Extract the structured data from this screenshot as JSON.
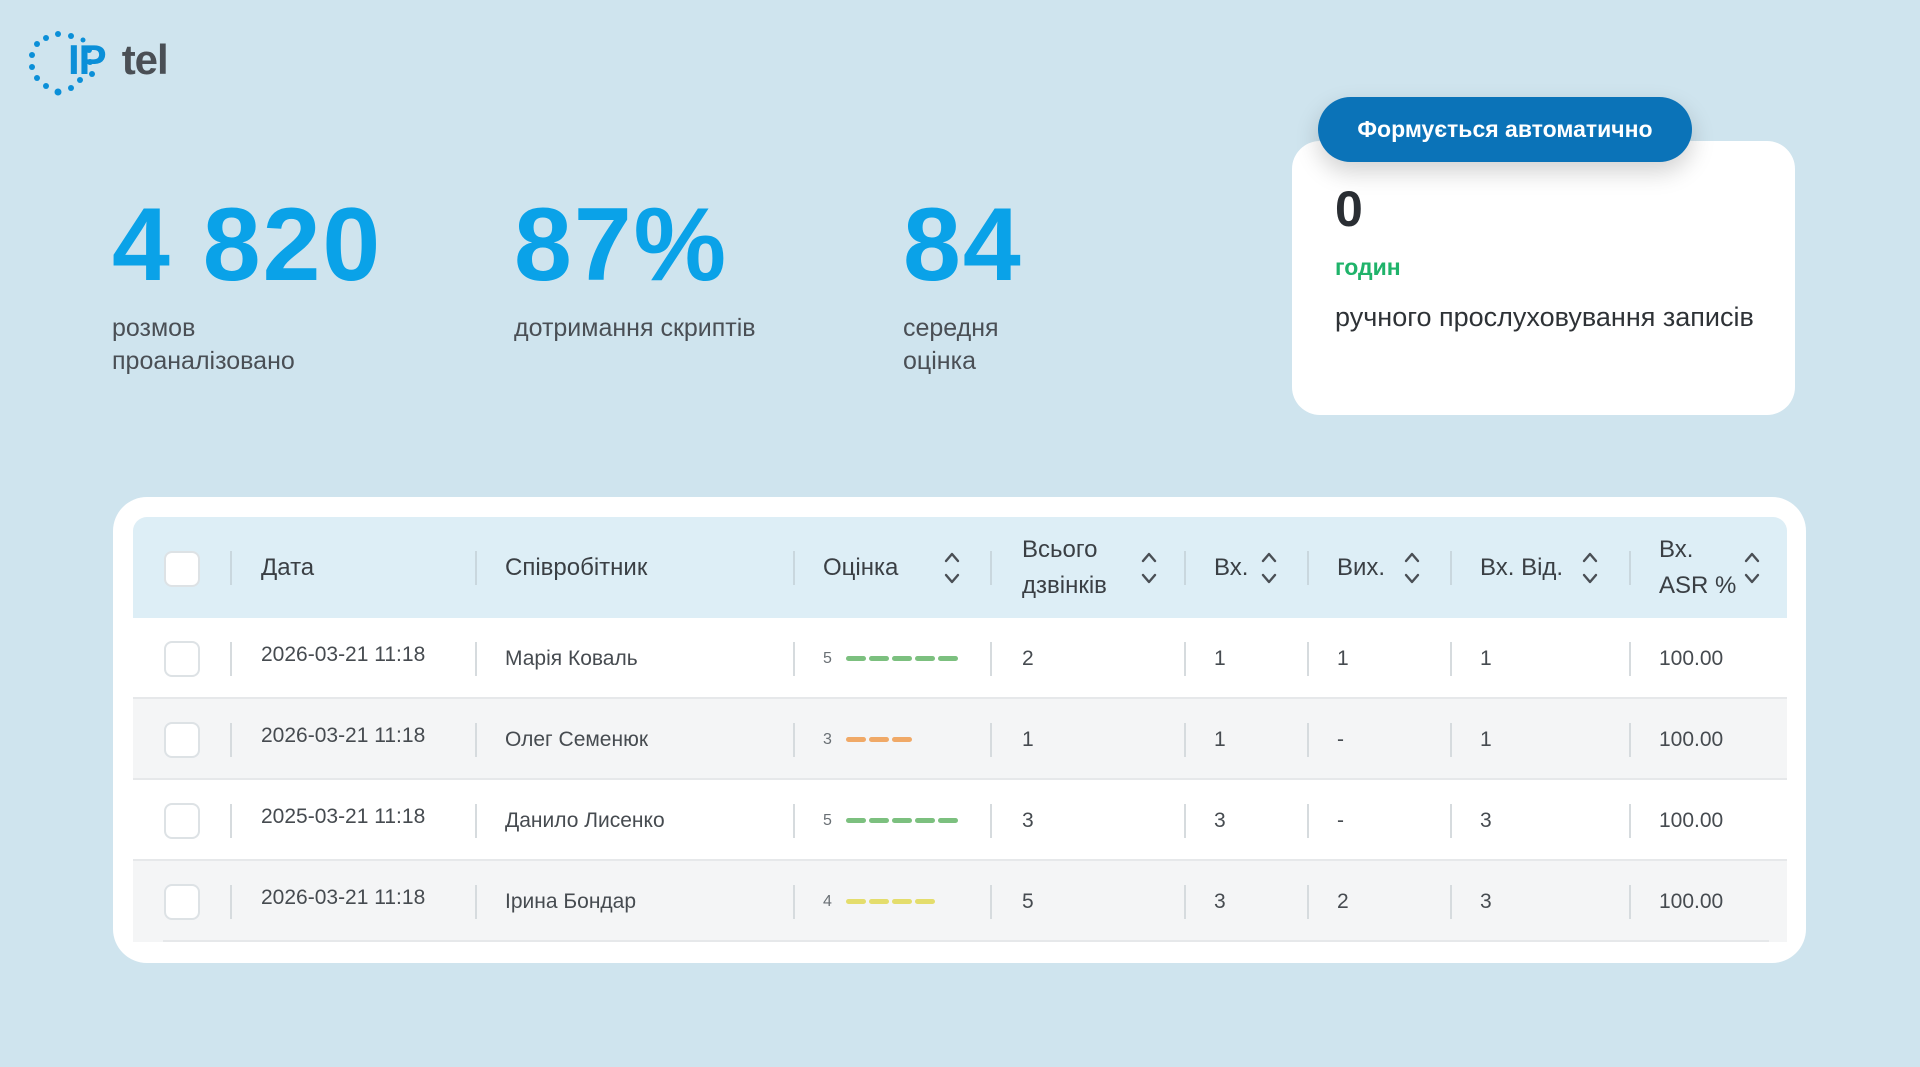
{
  "logo": {
    "ip": "IP",
    "tel": "tel"
  },
  "stats": [
    {
      "value": "4 820",
      "label": "розмов проаналізовано"
    },
    {
      "value": "87%",
      "label": "дотримання скриптів"
    },
    {
      "value": "84",
      "label": "середня оцінка"
    }
  ],
  "auto_card": {
    "badge": "Формується автоматично",
    "value": "0",
    "unit": "годин",
    "description": "ручного прослуховування записів"
  },
  "colors": {
    "accent": "#0aa2e8",
    "badge": "#0b73b8",
    "green": "#1fb36a",
    "rating_5": "#7cc07f",
    "rating_3": "#f0a967",
    "rating_4": "#e4dd6c"
  },
  "table": {
    "headers": {
      "date": "Дата",
      "employee": "Співробітник",
      "rating": "Оцінка",
      "total_line1": "Всього",
      "total_line2": "дзвінків",
      "incoming": "Вх.",
      "outgoing": "Вих.",
      "incoming_answered": "Вх. Від.",
      "asr_line1": "Вх.",
      "asr_line2": "ASR %"
    },
    "rows": [
      {
        "date": "2026-03-21 11:18",
        "employee": "Марія Коваль",
        "rating": "5",
        "rating_level": 5,
        "total": "2",
        "incoming": "1",
        "outgoing": "1",
        "incoming_answered": "1",
        "asr": "100.00"
      },
      {
        "date": "2026-03-21 11:18",
        "employee": "Олег Семенюк",
        "rating": "3",
        "rating_level": 3,
        "total": "1",
        "incoming": "1",
        "outgoing": "-",
        "incoming_answered": "1",
        "asr": "100.00"
      },
      {
        "date": "2025-03-21 11:18",
        "employee": "Данило Лисенко",
        "rating": "5",
        "rating_level": 5,
        "total": "3",
        "incoming": "3",
        "outgoing": "-",
        "incoming_answered": "3",
        "asr": "100.00"
      },
      {
        "date": "2026-03-21 11:18",
        "employee": "Ірина Бондар",
        "rating": "4",
        "rating_level": 4,
        "total": "5",
        "incoming": "3",
        "outgoing": "2",
        "incoming_answered": "3",
        "asr": "100.00"
      }
    ]
  }
}
